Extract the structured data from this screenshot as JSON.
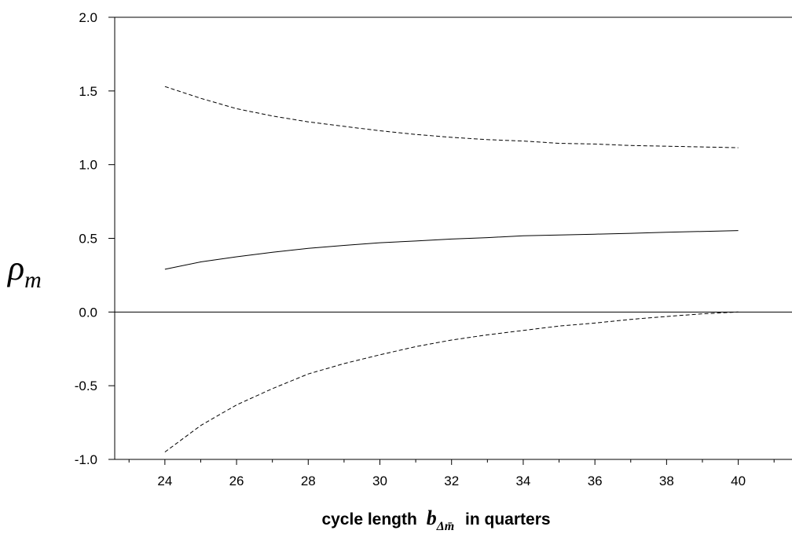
{
  "chart_data": {
    "type": "line",
    "xlabel": {
      "before": "cycle length",
      "symbol": "b",
      "subscript": "Δm̄",
      "after": "in quarters"
    },
    "ylabel": {
      "symbol": "ρ",
      "subscript": "m"
    },
    "xlim": [
      22.6,
      41.5
    ],
    "ylim": [
      -1.0,
      2.0
    ],
    "x_ticks": [
      24,
      26,
      28,
      30,
      32,
      34,
      36,
      38,
      40
    ],
    "y_ticks": [
      -1.0,
      -0.5,
      0.0,
      0.5,
      1.0,
      1.5,
      2.0
    ],
    "y_tick_labels": [
      "-1.0",
      "-0.5",
      "0.0",
      "0.5",
      "1.0",
      "1.5",
      "2.0"
    ],
    "reference_line_y": 0.0,
    "grid": false,
    "series": [
      {
        "style": "solid",
        "x": [
          24,
          25,
          26,
          27,
          28,
          29,
          30,
          31,
          32,
          33,
          34,
          35,
          36,
          37,
          38,
          39,
          40
        ],
        "values": [
          0.29,
          0.34,
          0.375,
          0.405,
          0.432,
          0.452,
          0.47,
          0.482,
          0.495,
          0.505,
          0.517,
          0.523,
          0.528,
          0.534,
          0.541,
          0.547,
          0.553
        ]
      },
      {
        "style": "dashed",
        "x": [
          24,
          25,
          26,
          27,
          28,
          29,
          30,
          31,
          32,
          33,
          34,
          35,
          36,
          37,
          38,
          39,
          40
        ],
        "values": [
          1.53,
          1.45,
          1.38,
          1.33,
          1.29,
          1.26,
          1.23,
          1.205,
          1.185,
          1.17,
          1.16,
          1.145,
          1.14,
          1.13,
          1.125,
          1.12,
          1.115
        ]
      },
      {
        "style": "dashed",
        "x": [
          24,
          25,
          26,
          27,
          28,
          29,
          30,
          31,
          32,
          33,
          34,
          35,
          36,
          37,
          38,
          39,
          40
        ],
        "values": [
          -0.95,
          -0.77,
          -0.63,
          -0.52,
          -0.42,
          -0.35,
          -0.29,
          -0.235,
          -0.19,
          -0.155,
          -0.125,
          -0.095,
          -0.075,
          -0.05,
          -0.03,
          -0.012,
          0.0
        ]
      }
    ]
  }
}
